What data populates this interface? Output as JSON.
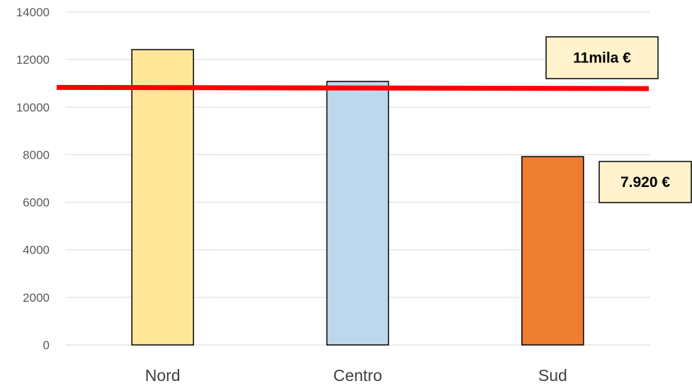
{
  "chart_data": {
    "type": "bar",
    "categories": [
      "Nord",
      "Centro",
      "Sud"
    ],
    "values": [
      12420,
      11080,
      7920
    ],
    "colors": [
      "#FFE699",
      "#BDD7EE",
      "#ED7D31"
    ],
    "bar_outline": "#000000",
    "ylim": [
      0,
      14000
    ],
    "yticks": [
      "0",
      "2000",
      "4000",
      "6000",
      "8000",
      "10000",
      "12000",
      "14000"
    ],
    "grid": true,
    "grid_color": "#D9D9D9",
    "reference_line": {
      "color": "#FF0000",
      "start_value": 10830,
      "end_value": 10780
    },
    "annotations": [
      {
        "text": "11mila €",
        "background": "#FFF2CC"
      },
      {
        "text": "7.920 €",
        "background": "#FFF2CC"
      }
    ]
  }
}
